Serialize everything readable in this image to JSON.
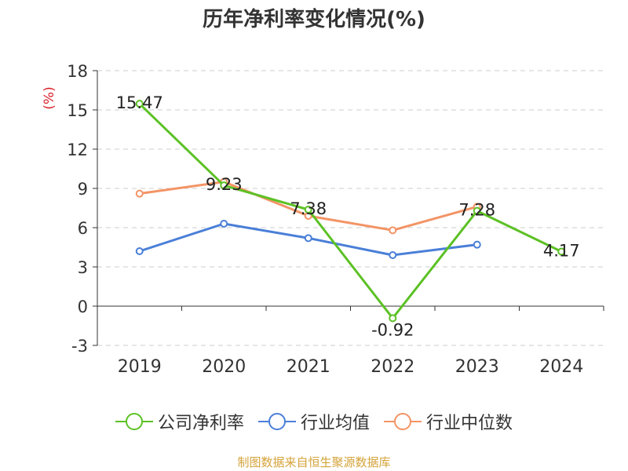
{
  "title": "历年净利率变化情况(%)",
  "source": "制图数据来自恒生聚源数据库",
  "chart_data": {
    "type": "line",
    "title": "历年净利率变化情况(%)",
    "ylabel": "(%)",
    "xlabel": "",
    "ylim": [
      -3,
      18
    ],
    "yticks": [
      -3,
      0,
      3,
      6,
      9,
      12,
      15,
      18
    ],
    "grid": true,
    "legend_position": "bottom",
    "categories": [
      "2019",
      "2020",
      "2021",
      "2022",
      "2023",
      "2024"
    ],
    "series": [
      {
        "name": "公司净利率",
        "color": "#5cc125",
        "values": [
          15.47,
          9.23,
          7.38,
          -0.92,
          7.28,
          4.17
        ],
        "labels": [
          "15.47",
          "9.23",
          "7.38",
          "-0.92",
          "7.28",
          "4.17"
        ]
      },
      {
        "name": "行业均值",
        "color": "#4a7fd8",
        "values": [
          4.2,
          6.3,
          5.2,
          3.9,
          4.7,
          null
        ]
      },
      {
        "name": "行业中位数",
        "color": "#f39466",
        "values": [
          8.6,
          9.5,
          6.9,
          5.8,
          7.6,
          null
        ]
      }
    ]
  }
}
